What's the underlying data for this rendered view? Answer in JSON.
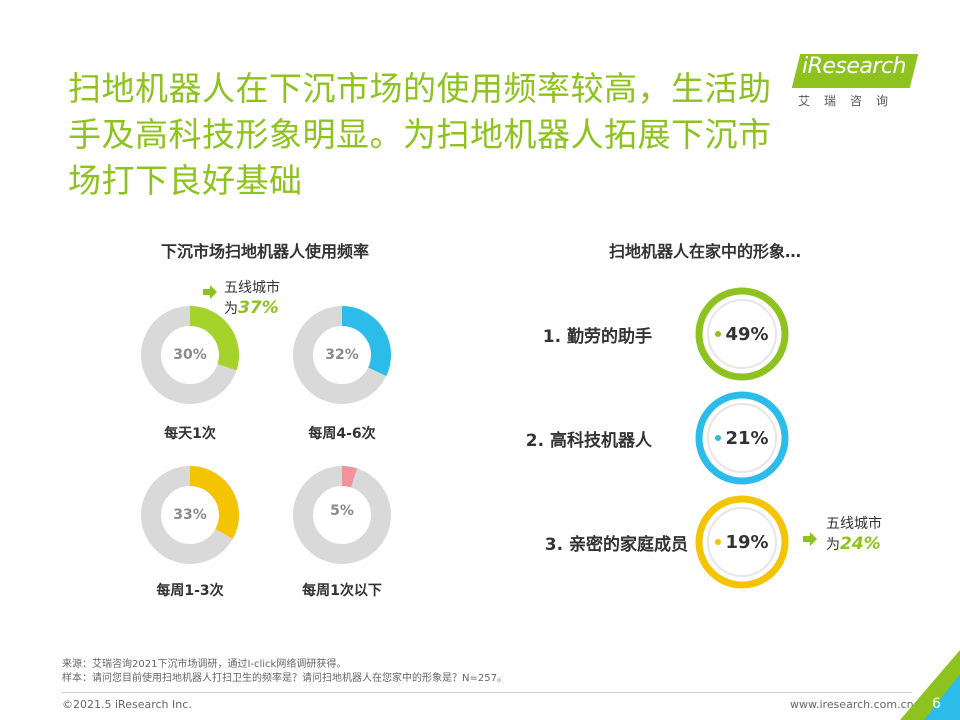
{
  "title": "扫地机器人在下沉市场的使用频率较高，生活助手及高科技形象明显。为扫地机器人拓展下沉市场打下良好基础",
  "logo": {
    "word": "iResearch",
    "cn": "艾瑞咨询"
  },
  "colors": {
    "accent": "#8dc21f",
    "blue": "#2bbcea",
    "yellow": "#f5c400",
    "pink": "#f0939b",
    "gray": "#d9d9d9"
  },
  "left": {
    "section_title": "下沉市场扫地机器人使用频率",
    "note": {
      "line1": "五线城市",
      "prefix": "为",
      "value": "37%"
    },
    "donuts": [
      {
        "label": "每天1次",
        "pct_text": "30%",
        "value": 30,
        "color": "#a6d32b"
      },
      {
        "label": "每周4-6次",
        "pct_text": "32%",
        "value": 32,
        "color": "#2bbcea"
      },
      {
        "label": "每周1-3次",
        "pct_text": "33%",
        "value": 33,
        "color": "#f5c400"
      },
      {
        "label": "每周1次以下",
        "pct_text": "5%",
        "value": 5,
        "color": "#f0939b"
      }
    ]
  },
  "right": {
    "section_title": "扫地机器人在家中的形象…",
    "note": {
      "line1": "五线城市",
      "prefix": "为",
      "value": "24%"
    },
    "rows": [
      {
        "label": "1. 勤劳的助手",
        "pct_text": "49%",
        "color": "#8dc21f"
      },
      {
        "label": "2. 高科技机器人",
        "pct_text": "21%",
        "color": "#2bbcea"
      },
      {
        "label": "3. 亲密的家庭成员",
        "pct_text": "19%",
        "color": "#f5c400"
      }
    ]
  },
  "footer": {
    "source": "来源：艾瑞咨询2021下沉市场调研，通过I-click网络调研获得。",
    "sample": "样本：请问您目前使用扫地机器人打扫卫生的频率是？请问扫地机器人在您家中的形象是？N=257。",
    "copyright": "©2021.5 iResearch Inc.",
    "url": "www.iresearch.com.cn",
    "page": "6"
  }
}
